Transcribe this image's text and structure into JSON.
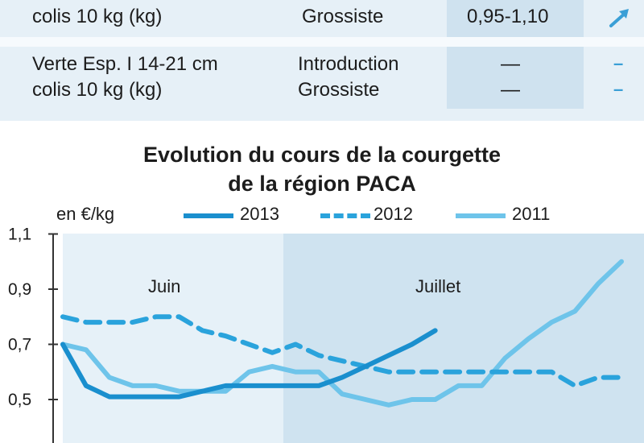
{
  "table": {
    "rows": [
      {
        "product": [
          "colis 10 kg (kg)"
        ],
        "stages": [
          "Grossiste"
        ],
        "prices": [
          "0,95-1,10"
        ],
        "trend": "up-arrow-icon"
      },
      {
        "product": [
          "Verte Esp. I 14-21 cm",
          "colis 10 kg (kg)"
        ],
        "stages": [
          "Introduction",
          "Grossiste"
        ],
        "prices": [
          "—",
          "—"
        ],
        "trend": "dash-icon"
      }
    ],
    "trend_marks": [
      "–",
      "–"
    ]
  },
  "chart": {
    "title_line1": "Evolution du cours de la courgette",
    "title_line2": "de la région PACA",
    "unit": "en €/kg",
    "months": [
      "Juin",
      "Juillet"
    ],
    "colors": {
      "2013": "#1a8fce",
      "2012": "#2aa3dc",
      "2011": "#6ec4ea",
      "juin_band": "#e6f1f8",
      "juillet_band": "#cfe3f0",
      "axis": "#333333"
    }
  },
  "chart_data": {
    "type": "line",
    "title": "Evolution du cours de la courgette de la région PACA",
    "ylabel": "en €/kg",
    "xlabel": "",
    "yticks": [
      "1,1",
      "0,9",
      "0,7",
      "0,5"
    ],
    "ylim": [
      0.4,
      1.1
    ],
    "xlim": [
      0,
      24
    ],
    "x_sections": [
      "Juin",
      "Juillet"
    ],
    "legend": "top",
    "grid": false,
    "series": [
      {
        "name": "2013",
        "style": "solid",
        "x": [
          0,
          1,
          2,
          3,
          4,
          5,
          6,
          7,
          8,
          9,
          10,
          11,
          12,
          13,
          14,
          15,
          16
        ],
        "y": [
          0.7,
          0.55,
          0.51,
          0.51,
          0.51,
          0.51,
          0.53,
          0.55,
          0.55,
          0.55,
          0.55,
          0.55,
          0.58,
          0.62,
          0.66,
          0.7,
          0.75
        ]
      },
      {
        "name": "2012",
        "style": "dashed",
        "x": [
          0,
          1,
          2,
          3,
          4,
          5,
          6,
          7,
          8,
          9,
          10,
          11,
          12,
          13,
          14,
          15,
          16,
          17,
          18,
          19,
          20,
          21,
          22,
          23,
          24
        ],
        "y": [
          0.8,
          0.78,
          0.78,
          0.78,
          0.8,
          0.8,
          0.75,
          0.73,
          0.7,
          0.67,
          0.7,
          0.66,
          0.64,
          0.62,
          0.6,
          0.6,
          0.6,
          0.6,
          0.6,
          0.6,
          0.6,
          0.6,
          0.55,
          0.58,
          0.58
        ]
      },
      {
        "name": "2011",
        "style": "solid",
        "x": [
          0,
          1,
          2,
          3,
          4,
          5,
          6,
          7,
          8,
          9,
          10,
          11,
          12,
          13,
          14,
          15,
          16,
          17,
          18,
          19,
          20,
          21,
          22,
          23,
          24
        ],
        "y": [
          0.7,
          0.68,
          0.58,
          0.55,
          0.55,
          0.53,
          0.53,
          0.53,
          0.6,
          0.62,
          0.6,
          0.6,
          0.52,
          0.5,
          0.48,
          0.5,
          0.5,
          0.55,
          0.55,
          0.65,
          0.72,
          0.78,
          0.82,
          0.92,
          1.0
        ]
      }
    ]
  }
}
